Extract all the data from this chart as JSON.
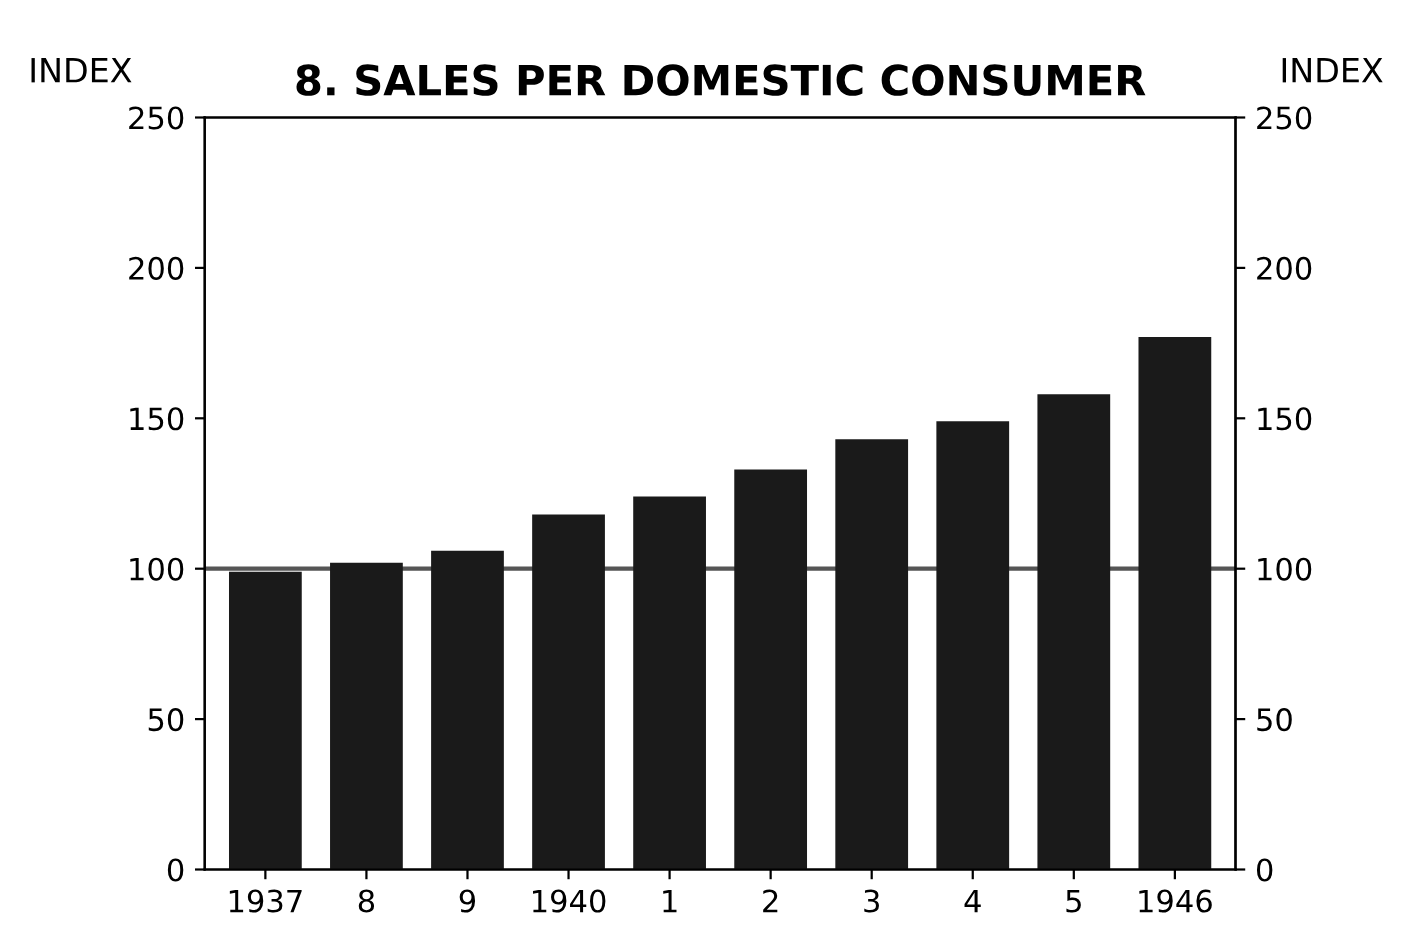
{
  "chart_data": {
    "type": "bar",
    "title": "8. SALES PER DOMESTIC CONSUMER",
    "ylabel": "INDEX",
    "y2label": "INDEX",
    "categories": [
      "1937",
      "8",
      "9",
      "1940",
      "1",
      "2",
      "3",
      "4",
      "5",
      "1946"
    ],
    "values": [
      99,
      102,
      106,
      118,
      124,
      133,
      143,
      149,
      158,
      177
    ],
    "color": "#1a1a1a",
    "ylim": [
      0,
      250
    ],
    "yticks": [
      0,
      50,
      100,
      150,
      200,
      250
    ],
    "y2lim": [
      0,
      250
    ],
    "y2ticks": [
      0,
      50,
      100,
      150,
      200,
      250
    ],
    "ref_lines": [
      {
        "axis": "y",
        "value": 100,
        "label": null,
        "color": "#555555"
      }
    ],
    "grid": false,
    "legend": false
  }
}
